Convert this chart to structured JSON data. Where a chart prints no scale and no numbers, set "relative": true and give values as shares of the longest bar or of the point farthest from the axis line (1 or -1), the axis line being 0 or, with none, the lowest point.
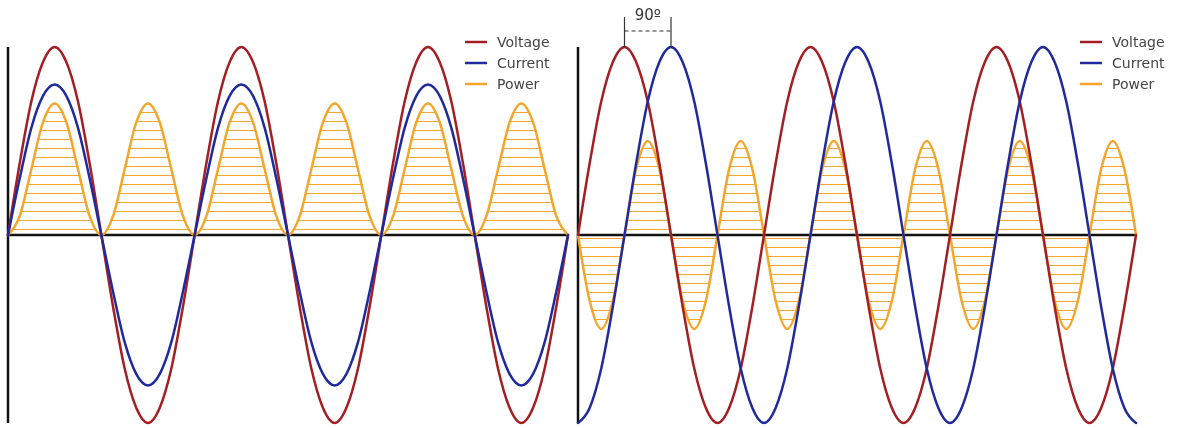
{
  "chart_data": [
    {
      "type": "line",
      "relative": true,
      "legend": "top right",
      "categories": [
        null,
        null,
        null,
        null,
        null,
        null,
        null,
        null,
        null,
        null,
        null,
        null,
        null,
        null,
        null,
        null,
        null,
        null,
        null,
        null,
        null,
        null,
        null,
        null,
        null,
        null,
        null,
        null,
        null,
        null,
        null,
        null,
        null,
        null,
        null,
        null,
        null,
        null,
        null,
        null,
        null,
        null,
        null,
        null,
        null,
        null,
        null,
        null,
        null
      ],
      "series": [
        {
          "name": "Voltage",
          "color": "#a31f24",
          "values": [
            0,
            0.38,
            0.71,
            0.92,
            1,
            0.92,
            0.71,
            0.38,
            0,
            -0.38,
            -0.71,
            -0.92,
            -1,
            -0.92,
            -0.71,
            -0.38,
            0,
            0.38,
            0.71,
            0.92,
            1,
            0.92,
            0.71,
            0.38,
            0,
            -0.38,
            -0.71,
            -0.92,
            -1,
            -0.92,
            -0.71,
            -0.38,
            0,
            0.38,
            0.71,
            0.92,
            1,
            0.92,
            0.71,
            0.38,
            0,
            -0.38,
            -0.71,
            -0.92,
            -1,
            -0.92,
            -0.71,
            -0.38,
            0
          ]
        },
        {
          "name": "Current",
          "color": "#1f2a9c",
          "values": [
            0,
            0.3,
            0.57,
            0.74,
            0.8,
            0.74,
            0.57,
            0.3,
            0,
            -0.3,
            -0.57,
            -0.74,
            -0.8,
            -0.74,
            -0.57,
            -0.3,
            0,
            0.3,
            0.57,
            0.74,
            0.8,
            0.74,
            0.57,
            0.3,
            0,
            -0.3,
            -0.57,
            -0.74,
            -0.8,
            -0.74,
            -0.57,
            -0.3,
            0,
            0.3,
            0.57,
            0.74,
            0.8,
            0.74,
            0.57,
            0.3,
            0,
            -0.3,
            -0.57,
            -0.74,
            -0.8,
            -0.74,
            -0.57,
            -0.3,
            0
          ]
        },
        {
          "name": "Power",
          "type": "area",
          "color": "#f5a52a",
          "values": [
            0,
            0.1,
            0.35,
            0.6,
            0.7,
            0.6,
            0.35,
            0.1,
            0,
            0.1,
            0.35,
            0.6,
            0.7,
            0.6,
            0.35,
            0.1,
            0,
            0.1,
            0.35,
            0.6,
            0.7,
            0.6,
            0.35,
            0.1,
            0,
            0.1,
            0.35,
            0.6,
            0.7,
            0.6,
            0.35,
            0.1,
            0,
            0.1,
            0.35,
            0.6,
            0.7,
            0.6,
            0.35,
            0.1,
            0,
            0.1,
            0.35,
            0.6,
            0.7,
            0.6,
            0.35,
            0.1,
            0
          ]
        }
      ]
    },
    {
      "type": "line",
      "relative": true,
      "legend": "top right",
      "annotations": [
        "90º"
      ],
      "categories": [
        null,
        null,
        null,
        null,
        null,
        null,
        null,
        null,
        null,
        null,
        null,
        null,
        null,
        null,
        null,
        null,
        null,
        null,
        null,
        null,
        null,
        null,
        null,
        null,
        null,
        null,
        null,
        null,
        null,
        null,
        null,
        null,
        null,
        null,
        null,
        null,
        null,
        null,
        null,
        null,
        null,
        null,
        null,
        null,
        null,
        null,
        null,
        null,
        null
      ],
      "series": [
        {
          "name": "Voltage",
          "color": "#a31f24",
          "values": [
            0,
            0.38,
            0.71,
            0.92,
            1,
            0.92,
            0.71,
            0.38,
            0,
            -0.38,
            -0.71,
            -0.92,
            -1,
            -0.92,
            -0.71,
            -0.38,
            0,
            0.38,
            0.71,
            0.92,
            1,
            0.92,
            0.71,
            0.38,
            0,
            -0.38,
            -0.71,
            -0.92,
            -1,
            -0.92,
            -0.71,
            -0.38,
            0,
            0.38,
            0.71,
            0.92,
            1,
            0.92,
            0.71,
            0.38,
            0,
            -0.38,
            -0.71,
            -0.92,
            -1,
            -0.92,
            -0.71,
            -0.38,
            0
          ]
        },
        {
          "name": "Current",
          "color": "#1f2a9c",
          "values": [
            -1,
            -0.92,
            -0.71,
            -0.38,
            0,
            0.38,
            0.71,
            0.92,
            1,
            0.92,
            0.71,
            0.38,
            0,
            -0.38,
            -0.71,
            -0.92,
            -1,
            -0.92,
            -0.71,
            -0.38,
            0,
            0.38,
            0.71,
            0.92,
            1,
            0.92,
            0.71,
            0.38,
            0,
            -0.38,
            -0.71,
            -0.92,
            -1,
            -0.92,
            -0.71,
            -0.38,
            0,
            0.38,
            0.71,
            0.92,
            1,
            0.92,
            0.71,
            0.38,
            0,
            -0.38,
            -0.71,
            -0.92,
            -1
          ]
        },
        {
          "name": "Power",
          "type": "area",
          "color": "#f5a52a",
          "values": [
            0,
            -0.35,
            -0.5,
            -0.35,
            0,
            0.35,
            0.5,
            0.35,
            0,
            -0.35,
            -0.5,
            -0.35,
            0,
            0.35,
            0.5,
            0.35,
            0,
            -0.35,
            -0.5,
            -0.35,
            0,
            0.35,
            0.5,
            0.35,
            0,
            -0.35,
            -0.5,
            -0.35,
            0,
            0.35,
            0.5,
            0.35,
            0,
            -0.35,
            -0.5,
            -0.35,
            0,
            0.35,
            0.5,
            0.35,
            0,
            -0.35,
            -0.5,
            -0.35,
            0,
            0.35,
            0.5,
            0.35,
            0
          ]
        }
      ]
    }
  ]
}
